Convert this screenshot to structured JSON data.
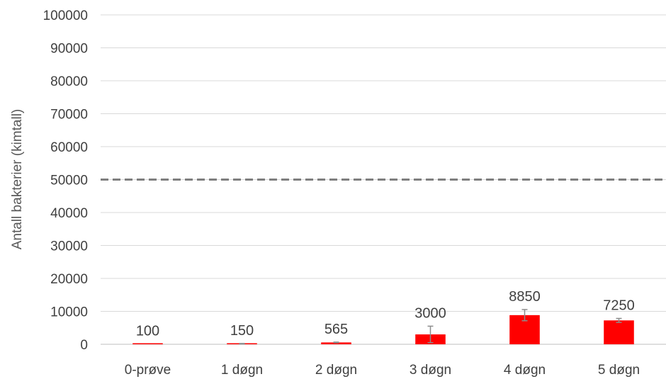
{
  "chart_data": {
    "type": "bar",
    "categories": [
      "0-prøve",
      "1 døgn",
      "2 døgn",
      "3 døgn",
      "4 døgn",
      "5 døgn"
    ],
    "values": [
      100,
      150,
      565,
      3000,
      8850,
      7250
    ],
    "data_labels": [
      "100",
      "150",
      "565",
      "3000",
      "8850",
      "7250"
    ],
    "error_bars": [
      0,
      100,
      100,
      2500,
      1700,
      600
    ],
    "ylabel": "Antall bakterier (kimtall)",
    "xlabel": "",
    "ylim": [
      0,
      100000
    ],
    "yticks": [
      "0",
      "10000",
      "20000",
      "30000",
      "40000",
      "50000",
      "60000",
      "70000",
      "80000",
      "90000",
      "100000"
    ],
    "reference_line": {
      "value": 50000,
      "style": "dashed",
      "color": "#7f7f7f"
    },
    "bar_color": "#ff0000",
    "grid": true,
    "legend": "none"
  }
}
